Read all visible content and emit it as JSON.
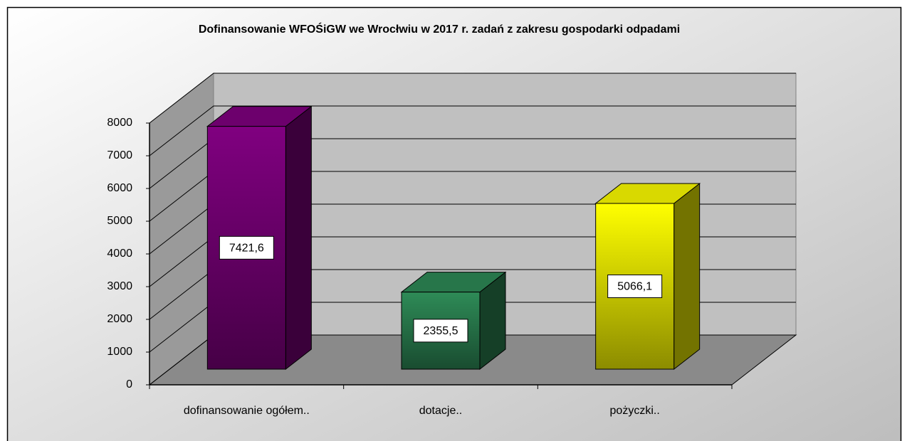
{
  "chart_data": {
    "type": "bar3d",
    "title": "Dofinansowanie WFOŚiGW we Wrocłwiu w 2017 r. zadań z zakresu gospodarki odpadami",
    "categories": [
      "dofinansowanie ogółem..",
      "dotacje..",
      "pożyczki.."
    ],
    "values": [
      7421.6,
      2355.5,
      5066.1
    ],
    "value_labels": [
      "7421,6",
      "2355,5",
      "5066,1"
    ],
    "colors": [
      "#800080",
      "#2e8b57",
      "#ffff00"
    ],
    "ylim": [
      0,
      8000
    ],
    "yticks": [
      0,
      1000,
      2000,
      3000,
      4000,
      5000,
      6000,
      7000,
      8000
    ],
    "grid": true
  }
}
